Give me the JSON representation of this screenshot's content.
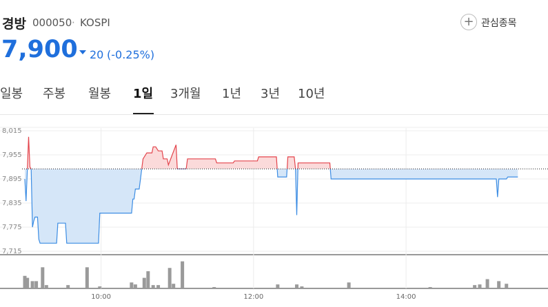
{
  "header": {
    "name": "경방",
    "code": "000050",
    "market": "KOSPI",
    "watch_button": "관심종목"
  },
  "quote": {
    "price": "7,900",
    "change": "20",
    "change_pct": "(-0.25%)"
  },
  "tabs": [
    "일봉",
    "주봉",
    "월봉",
    "1일",
    "3개월",
    "1년",
    "3년",
    "10년"
  ],
  "active_tab": 3,
  "chart_data": {
    "type": "line",
    "x": [
      "09:00",
      "09:01",
      "09:02",
      "09:03",
      "09:04",
      "09:05",
      "09:06",
      "09:07",
      "09:08",
      "09:10",
      "09:11",
      "09:12",
      "09:25",
      "09:26",
      "09:32",
      "09:33",
      "09:58",
      "09:59",
      "10:24",
      "10:25",
      "10:26",
      "10:27",
      "10:30",
      "10:31",
      "10:32",
      "10:33",
      "10:36",
      "10:40",
      "10:41",
      "10:43",
      "10:45",
      "10:48",
      "10:49",
      "10:52",
      "10:53",
      "10:59",
      "11:00",
      "11:07",
      "11:08",
      "11:30",
      "11:31",
      "11:44",
      "11:45",
      "12:03",
      "12:04",
      "12:18",
      "12:19",
      "12:26",
      "12:27",
      "12:32",
      "12:33",
      "12:34",
      "12:35",
      "13:00",
      "13:01",
      "15:11",
      "15:12",
      "15:13",
      "15:19",
      "15:20",
      "15:28"
    ],
    "values": [
      7895,
      7840,
      7920,
      8000,
      7925,
      7920,
      7775,
      7790,
      7800,
      7800,
      7745,
      7735,
      7735,
      7785,
      7785,
      7735,
      7735,
      7810,
      7810,
      7845,
      7845,
      7870,
      7870,
      7895,
      7920,
      7945,
      7960,
      7960,
      7975,
      7975,
      7965,
      7965,
      7945,
      7945,
      7930,
      7980,
      7920,
      7920,
      7945,
      7945,
      7935,
      7935,
      7940,
      7940,
      7950,
      7950,
      7900,
      7900,
      7950,
      7950,
      7920,
      7805,
      7935,
      7935,
      7895,
      7895,
      7850,
      7895,
      7895,
      7900,
      7900
    ],
    "reference_line": 7920,
    "xlim": [
      "09:00",
      "15:30"
    ],
    "xticks": [
      "10:00",
      "12:00",
      "14:00"
    ],
    "ylim": [
      7715,
      8015
    ],
    "yticks": [
      {
        "value": 8015,
        "label": "8,015"
      },
      {
        "value": 7955,
        "label": "7,955"
      },
      {
        "value": 7895,
        "label": "7,895"
      },
      {
        "value": 7835,
        "label": "7,835"
      },
      {
        "value": 7775,
        "label": "7,775"
      },
      {
        "value": 7715,
        "label": "7,715"
      }
    ],
    "grid": true,
    "up_color": "#e3434b",
    "down_color": "#3b8ce3",
    "up_fill": "#fbdada",
    "down_fill": "#d5e6f8",
    "volume": {
      "type": "bar",
      "color": "#9a9a9a",
      "ylim": [
        0,
        48
      ],
      "x": [
        "09:00",
        "09:02",
        "09:06",
        "09:09",
        "09:14",
        "09:17",
        "09:34",
        "09:49",
        "09:59",
        "10:24",
        "10:27",
        "10:34",
        "10:37",
        "10:41",
        "10:45",
        "10:54",
        "10:57",
        "11:04",
        "11:29",
        "12:19",
        "12:34",
        "12:38",
        "13:15",
        "14:19",
        "14:54",
        "14:58",
        "15:04",
        "15:13",
        "15:19"
      ],
      "values": [
        18,
        15,
        10,
        10,
        31,
        4,
        4,
        31,
        2,
        8,
        5,
        15,
        25,
        4,
        4,
        30,
        6,
        40,
        1,
        5,
        5,
        2,
        8,
        1,
        4,
        5,
        13,
        10,
        6
      ]
    }
  }
}
